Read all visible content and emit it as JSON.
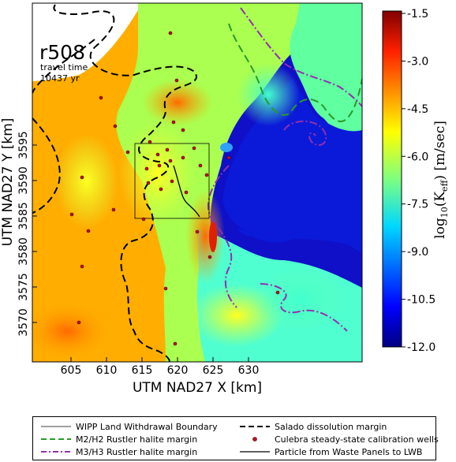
{
  "map": {
    "run_label": "r508",
    "travel_time_label": "travel time",
    "travel_time_value": "10437 yr",
    "xlabel": "UTM NAD27 X [km]",
    "ylabel": "UTM NAD27 Y [km]",
    "x_ticks": [
      "605",
      "610",
      "615",
      "620",
      "625",
      "630"
    ],
    "y_ticks": [
      "3570",
      "3575",
      "3580",
      "3585",
      "3590",
      "3595"
    ]
  },
  "colorbar": {
    "label_prefix": "log",
    "label_sub": "10",
    "label_body": "(K",
    "label_sub2": "eff",
    "label_unit": ") [m/sec]",
    "ticks": [
      "-1.5",
      "-3.0",
      "-4.5",
      "-6.0",
      "-7.5",
      "-9.0",
      "-10.5",
      "-12.0"
    ],
    "colors": [
      "#800000",
      "#ff0000",
      "#ff8c00",
      "#ffff00",
      "#7fff7f",
      "#00e5ff",
      "#0050ff",
      "#000080"
    ]
  },
  "legend": {
    "wipp": "WIPP Land Withdrawal Boundary",
    "salado": "Salado dissolution margin",
    "m2h2": "M2/H2 Rustler halite margin",
    "wells": "Culebra steady-state calibration wells",
    "m3h3": "M3/H3 Rustler halite margin",
    "particle": "Particle from Waste Panels to LWB"
  }
}
